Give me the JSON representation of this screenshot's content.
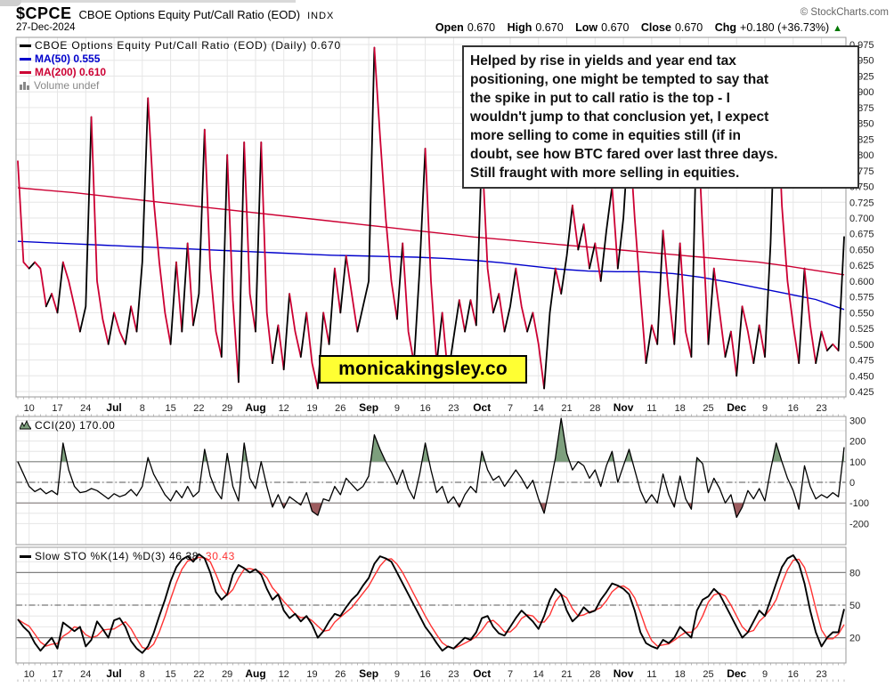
{
  "header": {
    "symbol": "$CPCE",
    "title": "CBOE Options Equity Put/Call Ratio (EOD)",
    "exchange": "INDX",
    "date": "27-Dec-2024",
    "copyright": "© StockCharts.com",
    "quote": {
      "open_label": "Open",
      "open_value": "0.670",
      "high_label": "High",
      "high_value": "0.670",
      "low_label": "Low",
      "low_value": "0.670",
      "close_label": "Close",
      "close_value": "0.670",
      "chg_label": "Chg",
      "chg_value": "+0.180 (+36.73%)",
      "chg_direction": "up",
      "up_arrow": "▲"
    }
  },
  "annotation": {
    "text": "Helped by rise in yields and year end tax\npositioning, one might be tempted to say that\nthe spike in put to call ratio is the top - I\nwouldn't jump to that conclusion yet, I expect\nmore selling to come in equities still (if in\ndoubt, see how BTC fared over last three days.\nStill fraught with more selling in equities."
  },
  "watermark": {
    "text": "monicakingsley.co"
  },
  "colors": {
    "price_up": "#000000",
    "price_down": "#cc0033",
    "ma50": "#0000cc",
    "ma200": "#cc0033",
    "stoch_k": "#000000",
    "stoch_d": "#ff3333",
    "cci_line": "#000000",
    "cci_fill_above": "#7d9f7d",
    "cci_fill_below": "#9d5c5f",
    "grid": "#e6e6e6",
    "panel_border": "#999999",
    "band_line": "#808080",
    "watermark_bg": "#ffff33",
    "chg_up": "#007700"
  },
  "chart_data": [
    {
      "type": "line",
      "panel": "price",
      "title": "CBOE Options Equity Put/Call Ratio (EOD) (Daily)",
      "last_value": 0.67,
      "legend": [
        {
          "label": "CBOE Options Equity Put/Call Ratio (EOD) (Daily) 0.670",
          "color": "#000000"
        },
        {
          "label": "MA(50) 0.555",
          "color": "#0000cc"
        },
        {
          "label": "MA(200) 0.610",
          "color": "#cc0033"
        },
        {
          "label": "Volume undef",
          "color": "#888888"
        }
      ],
      "ylim": [
        0.425,
        0.975
      ],
      "yticks": [
        0.975,
        0.95,
        0.925,
        0.9,
        0.875,
        0.85,
        0.825,
        0.8,
        0.775,
        0.75,
        0.725,
        0.7,
        0.675,
        0.65,
        0.625,
        0.6,
        0.575,
        0.55,
        0.525,
        0.5,
        0.475,
        0.45,
        0.425
      ],
      "xticks": [
        {
          "label": "10",
          "day": 2
        },
        {
          "label": "17",
          "day": 7
        },
        {
          "label": "24",
          "day": 12
        },
        {
          "label": "Jul",
          "day": 17,
          "bold": true
        },
        {
          "label": "8",
          "day": 22
        },
        {
          "label": "15",
          "day": 27
        },
        {
          "label": "22",
          "day": 32
        },
        {
          "label": "29",
          "day": 37
        },
        {
          "label": "Aug",
          "day": 42,
          "bold": true
        },
        {
          "label": "12",
          "day": 47
        },
        {
          "label": "19",
          "day": 52
        },
        {
          "label": "26",
          "day": 57
        },
        {
          "label": "Sep",
          "day": 62,
          "bold": true
        },
        {
          "label": "9",
          "day": 67
        },
        {
          "label": "16",
          "day": 72
        },
        {
          "label": "23",
          "day": 77
        },
        {
          "label": "Oct",
          "day": 82,
          "bold": true
        },
        {
          "label": "7",
          "day": 87
        },
        {
          "label": "14",
          "day": 92
        },
        {
          "label": "21",
          "day": 97
        },
        {
          "label": "28",
          "day": 102
        },
        {
          "label": "Nov",
          "day": 107,
          "bold": true
        },
        {
          "label": "11",
          "day": 112
        },
        {
          "label": "18",
          "day": 117
        },
        {
          "label": "25",
          "day": 122
        },
        {
          "label": "Dec",
          "day": 127,
          "bold": true
        },
        {
          "label": "9",
          "day": 132
        },
        {
          "label": "16",
          "day": 137
        },
        {
          "label": "23",
          "day": 142
        }
      ],
      "series": [
        {
          "name": "put-call-ratio",
          "style": "updown-line",
          "values": [
            0.79,
            0.63,
            0.62,
            0.63,
            0.62,
            0.56,
            0.58,
            0.55,
            0.63,
            0.6,
            0.56,
            0.52,
            0.56,
            0.86,
            0.6,
            0.54,
            0.5,
            0.55,
            0.52,
            0.5,
            0.56,
            0.52,
            0.63,
            0.89,
            0.73,
            0.63,
            0.55,
            0.5,
            0.63,
            0.52,
            0.66,
            0.53,
            0.58,
            0.84,
            0.62,
            0.52,
            0.48,
            0.8,
            0.57,
            0.44,
            0.82,
            0.58,
            0.52,
            0.82,
            0.55,
            0.47,
            0.53,
            0.46,
            0.58,
            0.52,
            0.48,
            0.55,
            0.47,
            0.43,
            0.55,
            0.5,
            0.62,
            0.55,
            0.64,
            0.58,
            0.52,
            0.56,
            0.6,
            0.97,
            0.83,
            0.7,
            0.6,
            0.54,
            0.66,
            0.52,
            0.47,
            0.62,
            0.81,
            0.6,
            0.47,
            0.55,
            0.45,
            0.51,
            0.57,
            0.52,
            0.57,
            0.53,
            0.81,
            0.62,
            0.55,
            0.58,
            0.52,
            0.56,
            0.62,
            0.56,
            0.52,
            0.55,
            0.5,
            0.43,
            0.55,
            0.62,
            0.58,
            0.64,
            0.72,
            0.65,
            0.69,
            0.62,
            0.66,
            0.6,
            0.68,
            0.75,
            0.62,
            0.7,
            0.84,
            0.7,
            0.58,
            0.47,
            0.53,
            0.5,
            0.68,
            0.58,
            0.5,
            0.66,
            0.52,
            0.48,
            0.87,
            0.68,
            0.5,
            0.62,
            0.55,
            0.48,
            0.52,
            0.45,
            0.56,
            0.52,
            0.47,
            0.53,
            0.48,
            0.66,
            0.94,
            0.72,
            0.6,
            0.53,
            0.47,
            0.62,
            0.53,
            0.47,
            0.52,
            0.49,
            0.5,
            0.49,
            0.67
          ]
        },
        {
          "name": "MA(50)",
          "style": "line",
          "color_key": "ma50",
          "last_value": 0.555,
          "values": [
            0.663,
            0.661,
            0.659,
            0.657,
            0.655,
            0.653,
            0.651,
            0.649,
            0.647,
            0.645,
            0.643,
            0.641,
            0.64,
            0.639,
            0.638,
            0.636,
            0.633,
            0.629,
            0.624,
            0.619,
            0.616,
            0.615,
            0.615,
            0.612,
            0.606,
            0.598,
            0.589,
            0.58,
            0.571,
            0.555
          ]
        },
        {
          "name": "MA(200)",
          "style": "line",
          "color_key": "ma200",
          "last_value": 0.61,
          "values": [
            0.748,
            0.744,
            0.74,
            0.735,
            0.73,
            0.725,
            0.72,
            0.715,
            0.71,
            0.705,
            0.7,
            0.695,
            0.69,
            0.685,
            0.68,
            0.675,
            0.67,
            0.666,
            0.662,
            0.658,
            0.654,
            0.65,
            0.646,
            0.642,
            0.638,
            0.634,
            0.63,
            0.624,
            0.617,
            0.61
          ]
        }
      ],
      "volume": "undef"
    },
    {
      "type": "line",
      "panel": "cci",
      "legend_label": "CCI(20) 170.00",
      "last_value": 170.0,
      "ylim": [
        -250,
        345
      ],
      "yticks": [
        300,
        200,
        100,
        0,
        -100,
        -200
      ],
      "bands": {
        "upper": 100,
        "zero": 0,
        "lower": -100
      },
      "values": [
        100,
        40,
        -20,
        -45,
        -30,
        -55,
        -40,
        -60,
        190,
        60,
        -20,
        -50,
        -45,
        -30,
        -40,
        -60,
        -80,
        -55,
        -70,
        -60,
        -35,
        -65,
        -20,
        120,
        40,
        -10,
        -60,
        -90,
        -40,
        -75,
        -20,
        -70,
        -45,
        160,
        30,
        -40,
        -80,
        140,
        -20,
        -90,
        190,
        20,
        -30,
        100,
        -20,
        -120,
        -60,
        -125,
        -70,
        -90,
        -110,
        -50,
        -140,
        -160,
        -80,
        -90,
        -20,
        -60,
        20,
        -10,
        -40,
        -20,
        30,
        230,
        160,
        100,
        50,
        -10,
        60,
        -30,
        -80,
        40,
        190,
        60,
        -50,
        -20,
        -100,
        -70,
        -120,
        -60,
        -20,
        -50,
        150,
        60,
        10,
        30,
        -20,
        20,
        60,
        20,
        -30,
        10,
        -80,
        -150,
        -20,
        120,
        310,
        140,
        60,
        100,
        80,
        20,
        60,
        -20,
        80,
        150,
        0,
        80,
        160,
        60,
        -40,
        -100,
        -60,
        -100,
        40,
        -60,
        -120,
        30,
        -80,
        -130,
        120,
        90,
        -50,
        20,
        -30,
        -100,
        -60,
        -170,
        -120,
        -40,
        -80,
        -30,
        -90,
        60,
        190,
        100,
        20,
        -40,
        -130,
        80,
        -20,
        -80,
        -60,
        -75,
        -50,
        -70,
        170
      ]
    },
    {
      "type": "line",
      "panel": "stochastic",
      "legend_label": "Slow STO %K(14) %D(3) 46.38,",
      "d_label": "30.43",
      "k_last": 46.38,
      "d_last": 30.43,
      "d_period": 3,
      "ylim": [
        0,
        103
      ],
      "yticks": [
        80,
        50,
        20
      ],
      "bands": {
        "upper": 80,
        "mid": 50,
        "lower": 20
      },
      "k_values": [
        37,
        30,
        25,
        15,
        8,
        14,
        20,
        10,
        34,
        30,
        26,
        30,
        12,
        18,
        35,
        28,
        20,
        36,
        38,
        30,
        17,
        10,
        6,
        12,
        24,
        40,
        55,
        72,
        85,
        92,
        95,
        90,
        97,
        93,
        80,
        62,
        55,
        60,
        78,
        87,
        84,
        80,
        83,
        78,
        65,
        55,
        60,
        45,
        38,
        42,
        35,
        40,
        32,
        20,
        26,
        35,
        42,
        40,
        48,
        55,
        60,
        68,
        75,
        88,
        95,
        93,
        90,
        80,
        70,
        60,
        50,
        40,
        30,
        23,
        15,
        8,
        12,
        10,
        15,
        20,
        18,
        25,
        38,
        40,
        30,
        24,
        22,
        30,
        38,
        45,
        40,
        35,
        28,
        40,
        55,
        65,
        60,
        45,
        35,
        40,
        48,
        43,
        45,
        55,
        62,
        70,
        68,
        65,
        60,
        45,
        25,
        15,
        12,
        10,
        18,
        15,
        20,
        30,
        25,
        20,
        45,
        55,
        58,
        65,
        60,
        50,
        40,
        30,
        20,
        25,
        35,
        45,
        40,
        55,
        70,
        85,
        93,
        96,
        88,
        70,
        45,
        25,
        12,
        20,
        25,
        25,
        46.38
      ]
    }
  ]
}
